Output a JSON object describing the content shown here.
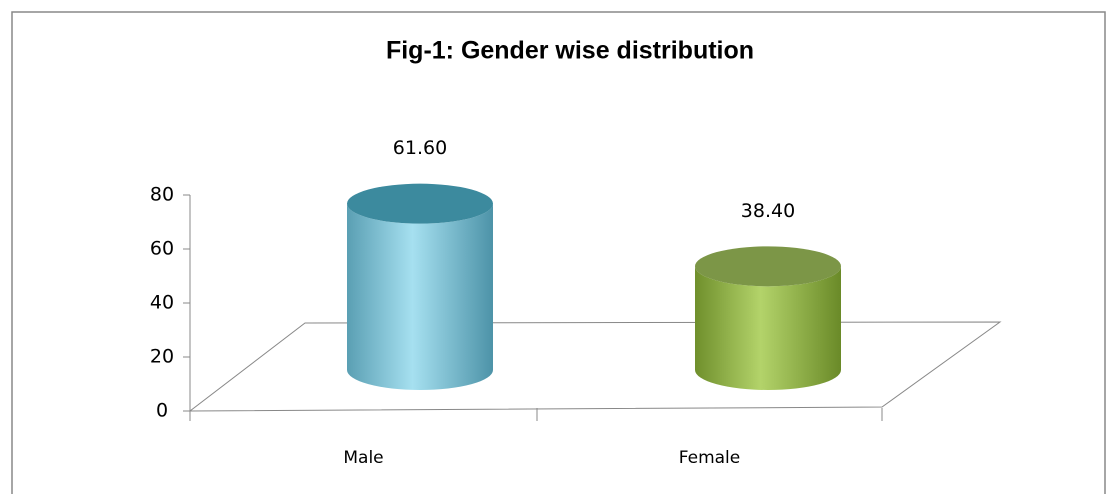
{
  "chart_data": {
    "type": "bar",
    "title": "Fig-1: Gender wise distribution",
    "categories": [
      "Male",
      "Female"
    ],
    "values": [
      61.6,
      38.4
    ],
    "value_labels": [
      "61.60",
      "38.40"
    ],
    "colors": [
      "#4bacc6",
      "#9bbb59"
    ],
    "ylim": [
      0,
      80
    ],
    "yticks": [
      0,
      20,
      40,
      60,
      80
    ]
  }
}
